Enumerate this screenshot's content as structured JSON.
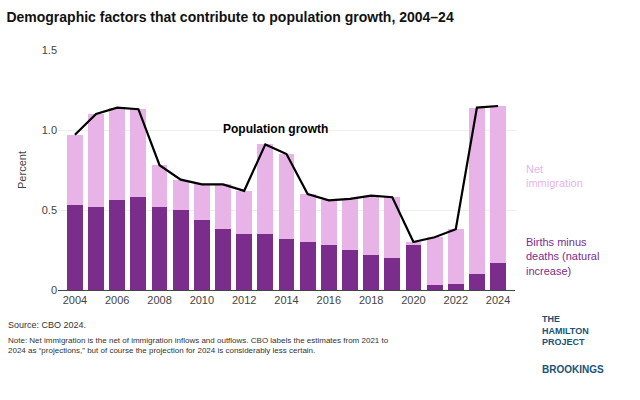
{
  "chart_data": {
    "type": "bar",
    "stacked": true,
    "title": "Demographic factors that contribute to population growth, 2004–24",
    "y_label": "Percent",
    "x": [
      2004,
      2005,
      2006,
      2007,
      2008,
      2009,
      2010,
      2011,
      2012,
      2013,
      2014,
      2015,
      2016,
      2017,
      2018,
      2019,
      2020,
      2021,
      2022,
      2023,
      2024
    ],
    "series": [
      {
        "name": "Births minus\ndeaths (natural\nincrease)",
        "type": "bar",
        "color": "#7b2d8b",
        "values": [
          0.53,
          0.52,
          0.56,
          0.58,
          0.52,
          0.5,
          0.44,
          0.38,
          0.35,
          0.35,
          0.32,
          0.3,
          0.28,
          0.25,
          0.22,
          0.2,
          0.28,
          0.03,
          0.04,
          0.1,
          0.17
        ]
      },
      {
        "name": "Net\nimmigration",
        "type": "bar",
        "color": "#e8b4e8",
        "values": [
          0.44,
          0.58,
          0.58,
          0.55,
          0.26,
          0.19,
          0.22,
          0.28,
          0.27,
          0.56,
          0.53,
          0.3,
          0.28,
          0.32,
          0.37,
          0.38,
          0.02,
          0.3,
          0.34,
          1.04,
          0.98
        ]
      },
      {
        "name": "Population growth",
        "type": "line",
        "color": "#000000",
        "values": [
          0.97,
          1.1,
          1.14,
          1.13,
          0.78,
          0.69,
          0.66,
          0.66,
          0.62,
          0.91,
          0.85,
          0.6,
          0.56,
          0.57,
          0.59,
          0.58,
          0.3,
          0.33,
          0.38,
          1.14,
          1.15
        ]
      }
    ],
    "xlim": [
      2003.2,
      2024.8
    ],
    "xticks": [
      2004,
      2006,
      2008,
      2010,
      2012,
      2014,
      2016,
      2018,
      2020,
      2022,
      2024
    ],
    "ylim": [
      0,
      1.5
    ],
    "yticks": [
      0,
      0.5,
      {
        "value": 1.0,
        "label": "1.0"
      },
      1.5
    ],
    "grid": "y",
    "annotations": [
      {
        "text": "Population growth",
        "x": 2013.5,
        "y": 0.95
      }
    ],
    "source": "Source: CBO 2024.",
    "note": "Note: Net immigration is the net of immigration inflows and outflows. CBO labels the estimates from 2021 to\n2024 as “projections,” but of course the projection for 2024 is considerably less certain.",
    "logos": [
      "THE\nHAMILTON\nPROJECT",
      "BROOKINGS"
    ]
  }
}
